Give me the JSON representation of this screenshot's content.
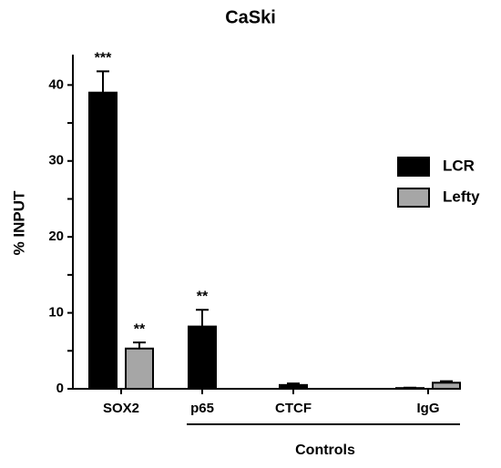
{
  "chart_data": {
    "type": "bar",
    "title": "CaSki",
    "y_label": "% INPUT",
    "categories": [
      "SOX2",
      "p65",
      "CTCF",
      "IgG"
    ],
    "series": [
      {
        "name": "LCR",
        "color": "#000000",
        "values": [
          39,
          8.2,
          0.5,
          0.1
        ],
        "errors": [
          2.8,
          2.2,
          0.2,
          0.05
        ],
        "labels": [
          "***",
          "**",
          null,
          null
        ]
      },
      {
        "name": "Lefty",
        "color": "#a6a6a6",
        "values": [
          5.3,
          null,
          null,
          0.8
        ],
        "errors": [
          0.8,
          null,
          null,
          0.2
        ],
        "labels": [
          "**",
          null,
          null,
          null
        ]
      }
    ],
    "group_label": "Controls",
    "ylim": [
      0,
      44
    ],
    "yticks": [
      0,
      5,
      10,
      15,
      20,
      25,
      30,
      35,
      40
    ],
    "legend": "right"
  }
}
